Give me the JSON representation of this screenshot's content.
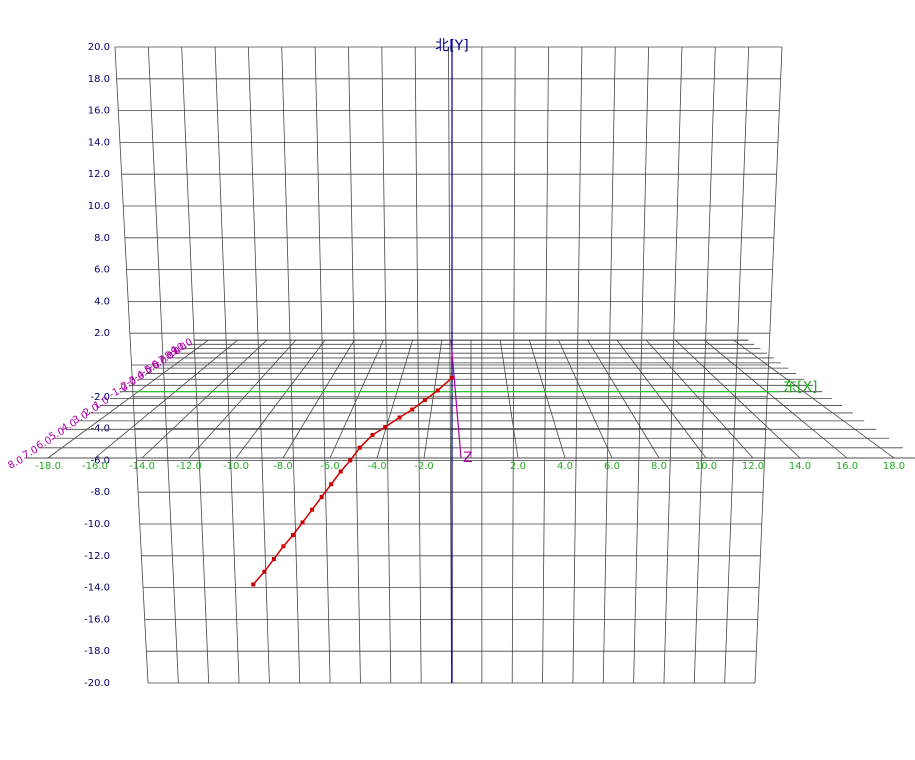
{
  "chart_data": {
    "type": "line3d",
    "x_label": "东[X]",
    "y_label": "北[Y]",
    "z_label": "Z",
    "xlim": [
      -19,
      19
    ],
    "xticks": [
      {
        "value": -18,
        "label": "-18.0"
      },
      {
        "value": -16,
        "label": "-16.0"
      },
      {
        "value": -14,
        "label": "-14.0"
      },
      {
        "value": -12,
        "label": "-12.0"
      },
      {
        "value": -10,
        "label": "-10.0"
      },
      {
        "value": -8,
        "label": "-8.0"
      },
      {
        "value": -6,
        "label": "-6.0"
      },
      {
        "value": -4,
        "label": "-4.0"
      },
      {
        "value": -2,
        "label": "-2.0"
      },
      {
        "value": 2,
        "label": "2.0"
      },
      {
        "value": 4,
        "label": "4.0"
      },
      {
        "value": 6,
        "label": "6.0"
      },
      {
        "value": 8,
        "label": "8.0"
      },
      {
        "value": 10,
        "label": "10.0"
      },
      {
        "value": 12,
        "label": "12.0"
      },
      {
        "value": 14,
        "label": "14.0"
      },
      {
        "value": 16,
        "label": "16.0"
      },
      {
        "value": 18,
        "label": "18.0"
      }
    ],
    "ylim": [
      -20,
      20
    ],
    "yticks": [
      {
        "value": 20,
        "label": "20.0"
      },
      {
        "value": 18,
        "label": "18.0"
      },
      {
        "value": 16,
        "label": "16.0"
      },
      {
        "value": 14,
        "label": "14.0"
      },
      {
        "value": 12,
        "label": "12.0"
      },
      {
        "value": 10,
        "label": "10.0"
      },
      {
        "value": 8,
        "label": "8.0"
      },
      {
        "value": 6,
        "label": "6.0"
      },
      {
        "value": 4,
        "label": "4.0"
      },
      {
        "value": 2,
        "label": "2.0"
      },
      {
        "value": -2,
        "label": "-2.0"
      },
      {
        "value": -4,
        "label": "-4.0"
      },
      {
        "value": -6,
        "label": "-6.0"
      },
      {
        "value": -8,
        "label": "-8.0"
      },
      {
        "value": -10,
        "label": "-10.0"
      },
      {
        "value": -12,
        "label": "-12.0"
      },
      {
        "value": -14,
        "label": "-14.0"
      },
      {
        "value": -16,
        "label": "-16.0"
      },
      {
        "value": -18,
        "label": "-18.0"
      },
      {
        "value": -20,
        "label": "-20.0"
      }
    ],
    "zlim": [
      8,
      -10
    ],
    "zticks": [
      {
        "value": 8,
        "label": "8.0"
      },
      {
        "value": 7,
        "label": "7.0"
      },
      {
        "value": 6,
        "label": "6.0"
      },
      {
        "value": 5,
        "label": "5.0"
      },
      {
        "value": 4,
        "label": "4.0"
      },
      {
        "value": 3,
        "label": "3.0"
      },
      {
        "value": 2,
        "label": "2.0"
      },
      {
        "value": 1,
        "label": "1.0"
      },
      {
        "value": -1,
        "label": "-1.0"
      },
      {
        "value": -2,
        "label": "-2.0"
      },
      {
        "value": -3,
        "label": "-3.0"
      },
      {
        "value": -4,
        "label": "-4.0"
      },
      {
        "value": -5,
        "label": "-5.0"
      },
      {
        "value": -6,
        "label": "-6.0"
      },
      {
        "value": -7,
        "label": "-7.0"
      },
      {
        "value": -8,
        "label": "-8.0"
      },
      {
        "value": -9,
        "label": "-9.0"
      },
      {
        "value": -10,
        "label": "-10.0"
      }
    ],
    "grid": true,
    "series": [
      {
        "color": "#cc0000",
        "x": [
          0,
          -0.9,
          -1.7,
          -2.5,
          -3.3,
          -4.2,
          -5.0,
          -5.8,
          -6.4,
          -7.0,
          -7.6,
          -8.2,
          -8.8,
          -9.4,
          -10.0,
          -10.6,
          -11.2,
          -11.8,
          -12.5
        ],
        "values": [
          -0.8,
          -1.6,
          -2.2,
          -2.8,
          -3.3,
          -3.9,
          -4.4,
          -5.2,
          -6.0,
          -6.7,
          -7.5,
          -8.3,
          -9.1,
          -9.9,
          -10.7,
          -11.4,
          -12.2,
          -13.0,
          -13.8
        ]
      }
    ]
  }
}
